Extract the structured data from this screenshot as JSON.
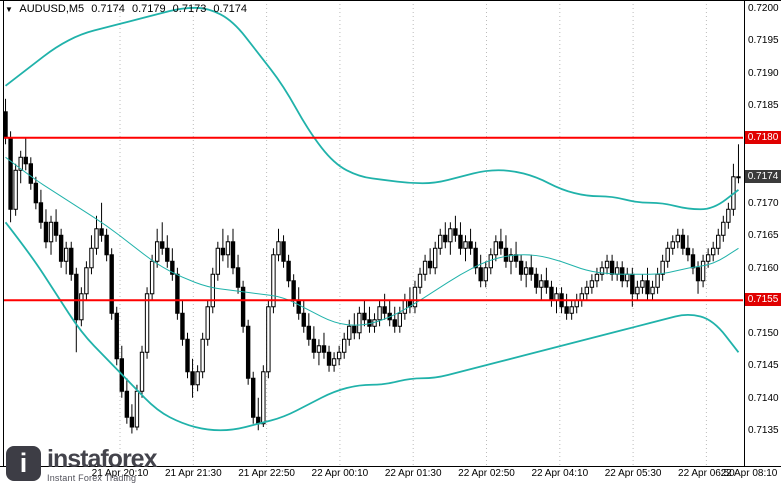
{
  "header": {
    "symbol_period": "AUDUSD,M5",
    "open": "0.7174",
    "high": "0.7179",
    "low": "0.7173",
    "close": "0.7174"
  },
  "watermark": {
    "logo_letter": "i",
    "brand": "instaforex",
    "tagline": "Instant Forex Trading"
  },
  "colors": {
    "band": "#20B2AA",
    "hline": "#ff0000",
    "badge_level": "#e00000",
    "badge_current": "#3b3b3b",
    "grid": "#bbbbbb",
    "axis": "#000000",
    "candle": "#000000"
  },
  "chart_data": {
    "type": "candlestick",
    "title": "AUDUSD,M5",
    "ylim": [
      0.71295,
      0.72012
    ],
    "price_encoding": "candle and band values are pips above 0.7100; price = 0.7100 + v/10000",
    "price_axis": {
      "ticks": [
        "0.7200",
        "0.7195",
        "0.7190",
        "0.7185",
        "0.7170",
        "0.7165",
        "0.7160",
        "0.7150",
        "0.7145",
        "0.7140",
        "0.7135"
      ],
      "badges": [
        {
          "value": "0.7180",
          "type": "level"
        },
        {
          "value": "0.7174",
          "type": "current"
        },
        {
          "value": "0.7155",
          "type": "level"
        }
      ]
    },
    "hlines": [
      {
        "price": 0.718
      },
      {
        "price": 0.7155
      }
    ],
    "time_axis": {
      "labels": [
        "21 Apr 20:10",
        "21 Apr 21:30",
        "21 Apr 22:50",
        "22 Apr 00:10",
        "22 Apr 01:30",
        "22 Apr 02:50",
        "22 Apr 04:10",
        "22 Apr 05:30",
        "22 Apr 06:50",
        "22 Apr 08:10"
      ]
    },
    "candles": [
      [
        84,
        86,
        79,
        80
      ],
      [
        80,
        81,
        67,
        69
      ],
      [
        69,
        76,
        68,
        75
      ],
      [
        75,
        78,
        73,
        77
      ],
      [
        77,
        80,
        75,
        76
      ],
      [
        76,
        77,
        72,
        73
      ],
      [
        73,
        74,
        69,
        70
      ],
      [
        70,
        72,
        66,
        67
      ],
      [
        67,
        69,
        63,
        64
      ],
      [
        64,
        68,
        62,
        67
      ],
      [
        67,
        69,
        64,
        65
      ],
      [
        65,
        66,
        60,
        61
      ],
      [
        61,
        64,
        59,
        63
      ],
      [
        63,
        64,
        58,
        59
      ],
      [
        59,
        60,
        47,
        52
      ],
      [
        52,
        57,
        51,
        56
      ],
      [
        56,
        61,
        55,
        60
      ],
      [
        60,
        65,
        59,
        63
      ],
      [
        63,
        68,
        62,
        66
      ],
      [
        66,
        70,
        64,
        65
      ],
      [
        65,
        66,
        61,
        62
      ],
      [
        62,
        63,
        52,
        53
      ],
      [
        53,
        54,
        45,
        46
      ],
      [
        46,
        48,
        40,
        41
      ],
      [
        41,
        43,
        36,
        37
      ],
      [
        37,
        39,
        34.5,
        35.5
      ],
      [
        35.5,
        42,
        35,
        41
      ],
      [
        41,
        48,
        40,
        47
      ],
      [
        47,
        57,
        46,
        56
      ],
      [
        56,
        62,
        55,
        61
      ],
      [
        61,
        66,
        60,
        64
      ],
      [
        64,
        67,
        62,
        63
      ],
      [
        63,
        65,
        60,
        61
      ],
      [
        61,
        63,
        58,
        59
      ],
      [
        59,
        60,
        52,
        53
      ],
      [
        53,
        55,
        48,
        49
      ],
      [
        49,
        50,
        43,
        44
      ],
      [
        44,
        46,
        40,
        42
      ],
      [
        42,
        45,
        41,
        44
      ],
      [
        44,
        50,
        43,
        49
      ],
      [
        49,
        55,
        48,
        54
      ],
      [
        54,
        60,
        53,
        59
      ],
      [
        59,
        64,
        58,
        63
      ],
      [
        63,
        66,
        61,
        62
      ],
      [
        62,
        65,
        60,
        64
      ],
      [
        64,
        66,
        59,
        60
      ],
      [
        60,
        62,
        56,
        57
      ],
      [
        57,
        58,
        50,
        51
      ],
      [
        51,
        52,
        42,
        43
      ],
      [
        43,
        44,
        36,
        37
      ],
      [
        37,
        40,
        35,
        36
      ],
      [
        36,
        45,
        35.5,
        44
      ],
      [
        44,
        55,
        43,
        54
      ],
      [
        54,
        63,
        53,
        62
      ],
      [
        62,
        66,
        61,
        64
      ],
      [
        64,
        65,
        60,
        61
      ],
      [
        61,
        62,
        57,
        58
      ],
      [
        58,
        59,
        54,
        55
      ],
      [
        55,
        57,
        52,
        53
      ],
      [
        53,
        55,
        50,
        51
      ],
      [
        51,
        53,
        48,
        49
      ],
      [
        49,
        51,
        46,
        47
      ],
      [
        47,
        49,
        45,
        48
      ],
      [
        48,
        50,
        46,
        47
      ],
      [
        47,
        48,
        44,
        45
      ],
      [
        45,
        47,
        44,
        46
      ],
      [
        46,
        48,
        45,
        47
      ],
      [
        47,
        50,
        46,
        49
      ],
      [
        49,
        52,
        48,
        51
      ],
      [
        51,
        53,
        49,
        50
      ],
      [
        50,
        54,
        49,
        53
      ],
      [
        53,
        55,
        51,
        52
      ],
      [
        52,
        54,
        50,
        51
      ],
      [
        51,
        53,
        50,
        52
      ],
      [
        52,
        55,
        51,
        54
      ],
      [
        54,
        56,
        52,
        53
      ],
      [
        53,
        55,
        51,
        52
      ],
      [
        52,
        54,
        50,
        51
      ],
      [
        51,
        54,
        50,
        53
      ],
      [
        53,
        56,
        52,
        55
      ],
      [
        55,
        57,
        53,
        54
      ],
      [
        54,
        58,
        53,
        57
      ],
      [
        57,
        60,
        56,
        59
      ],
      [
        59,
        62,
        58,
        61
      ],
      [
        61,
        63,
        59,
        60
      ],
      [
        60,
        64,
        59,
        63
      ],
      [
        63,
        66,
        62,
        65
      ],
      [
        65,
        67,
        63,
        64
      ],
      [
        64,
        67,
        62,
        66
      ],
      [
        66,
        68,
        64,
        65
      ],
      [
        65,
        67,
        62,
        63
      ],
      [
        63,
        65,
        61,
        64
      ],
      [
        64,
        66,
        62,
        63
      ],
      [
        63,
        64,
        59,
        60
      ],
      [
        60,
        62,
        57,
        58
      ],
      [
        58,
        61,
        57,
        60
      ],
      [
        60,
        63,
        59,
        62
      ],
      [
        62,
        65,
        61,
        64
      ],
      [
        64,
        66,
        62,
        63
      ],
      [
        63,
        65,
        60,
        61
      ],
      [
        61,
        63,
        59,
        62
      ],
      [
        62,
        64,
        60,
        61
      ],
      [
        61,
        62,
        58,
        59
      ],
      [
        59,
        61,
        57,
        60
      ],
      [
        60,
        62,
        58,
        59
      ],
      [
        59,
        60,
        56,
        57
      ],
      [
        57,
        59,
        55,
        58
      ],
      [
        58,
        60,
        56,
        57
      ],
      [
        57,
        58,
        54,
        55
      ],
      [
        55,
        57,
        53,
        56
      ],
      [
        56,
        57,
        53,
        54
      ],
      [
        54,
        56,
        52,
        53
      ],
      [
        53,
        55,
        52,
        54
      ],
      [
        54,
        56,
        53,
        55
      ],
      [
        55,
        57,
        54,
        56
      ],
      [
        56,
        58,
        55,
        57
      ],
      [
        57,
        59,
        56,
        58
      ],
      [
        58,
        60,
        57,
        59
      ],
      [
        59,
        61,
        58,
        60
      ],
      [
        60,
        62,
        59,
        61
      ],
      [
        61,
        62,
        58,
        59
      ],
      [
        59,
        61,
        58,
        60
      ],
      [
        60,
        61,
        57,
        58
      ],
      [
        58,
        60,
        57,
        59
      ],
      [
        59,
        60,
        54,
        56
      ],
      [
        56,
        58,
        55,
        57
      ],
      [
        57,
        59,
        56,
        58
      ],
      [
        58,
        60,
        55,
        56
      ],
      [
        56,
        58,
        55,
        57
      ],
      [
        57,
        60,
        56,
        59
      ],
      [
        59,
        62,
        58,
        61
      ],
      [
        61,
        64,
        60,
        63
      ],
      [
        63,
        65,
        62,
        64
      ],
      [
        64,
        66,
        63,
        65
      ],
      [
        65,
        66,
        62,
        63
      ],
      [
        63,
        65,
        61,
        62
      ],
      [
        62,
        63,
        59,
        60
      ],
      [
        60,
        61,
        56,
        58
      ],
      [
        58,
        62,
        57,
        61
      ],
      [
        61,
        63,
        60,
        62
      ],
      [
        62,
        64,
        61,
        63
      ],
      [
        63,
        66,
        62,
        65
      ],
      [
        65,
        68,
        64,
        67
      ],
      [
        67,
        70,
        66,
        69
      ],
      [
        69,
        76,
        68,
        74
      ],
      [
        74,
        79,
        73,
        74
      ]
    ],
    "bands": {
      "name": "bollinger-bands",
      "sampled_every": 5,
      "upper": [
        88,
        91,
        94,
        96,
        97,
        98,
        99,
        100,
        100,
        98,
        93,
        88,
        81,
        76,
        74,
        73.5,
        73,
        73,
        74,
        75,
        75,
        74,
        72,
        71,
        71,
        70,
        70,
        69,
        69,
        72
      ],
      "middle": [
        77,
        74,
        71.5,
        69,
        66.5,
        63.5,
        60.5,
        58.5,
        57,
        56.5,
        56,
        55.5,
        53.5,
        51.5,
        51,
        52,
        54,
        56.5,
        59,
        61,
        62,
        62,
        61,
        59.5,
        59,
        59,
        59,
        60,
        60.5,
        63
      ],
      "lower": [
        67,
        62,
        56,
        50,
        46,
        42,
        38,
        36,
        35,
        35,
        36,
        37,
        39,
        41,
        42,
        42,
        43,
        43,
        44,
        45,
        46,
        47,
        48,
        49,
        50,
        51,
        52,
        53,
        52,
        47
      ]
    }
  }
}
